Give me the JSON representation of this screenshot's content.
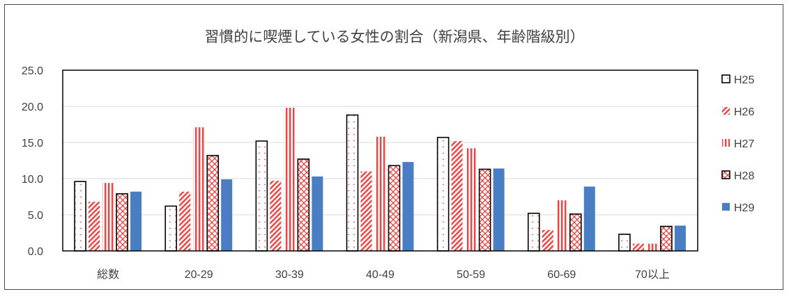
{
  "chart_data": {
    "type": "bar",
    "title": "習慣的に喫煙している女性の割合（新潟県、年齢階級別）",
    "xlabel": "",
    "ylabel": "",
    "ylim": [
      0,
      25
    ],
    "yticks": [
      "0.0",
      "5.0",
      "10.0",
      "15.0",
      "20.0",
      "25.0"
    ],
    "grid": true,
    "legend_position": "right",
    "categories": [
      "総数",
      "20-29",
      "30-39",
      "40-49",
      "50-59",
      "60-69",
      "70以上"
    ],
    "series": [
      {
        "name": "H25",
        "pattern": "dots",
        "color": "#000000",
        "values": [
          9.6,
          6.2,
          15.2,
          18.8,
          15.7,
          5.2,
          2.3
        ]
      },
      {
        "name": "H26",
        "pattern": "diagonal",
        "color": "#ff3b3b",
        "values": [
          6.8,
          8.2,
          9.7,
          11.0,
          15.2,
          2.9,
          1.0
        ]
      },
      {
        "name": "H27",
        "pattern": "vertical",
        "color": "#ff3b3b",
        "values": [
          9.4,
          17.1,
          19.8,
          15.8,
          14.2,
          7.0,
          1.0
        ]
      },
      {
        "name": "H28",
        "pattern": "crosshatch",
        "color": "#000000",
        "values": [
          7.9,
          13.2,
          12.7,
          11.8,
          11.3,
          5.1,
          3.4
        ]
      },
      {
        "name": "H29",
        "pattern": "solid",
        "color": "#4a7ec4",
        "values": [
          8.2,
          9.9,
          10.3,
          12.3,
          11.4,
          8.9,
          3.5
        ]
      }
    ]
  }
}
